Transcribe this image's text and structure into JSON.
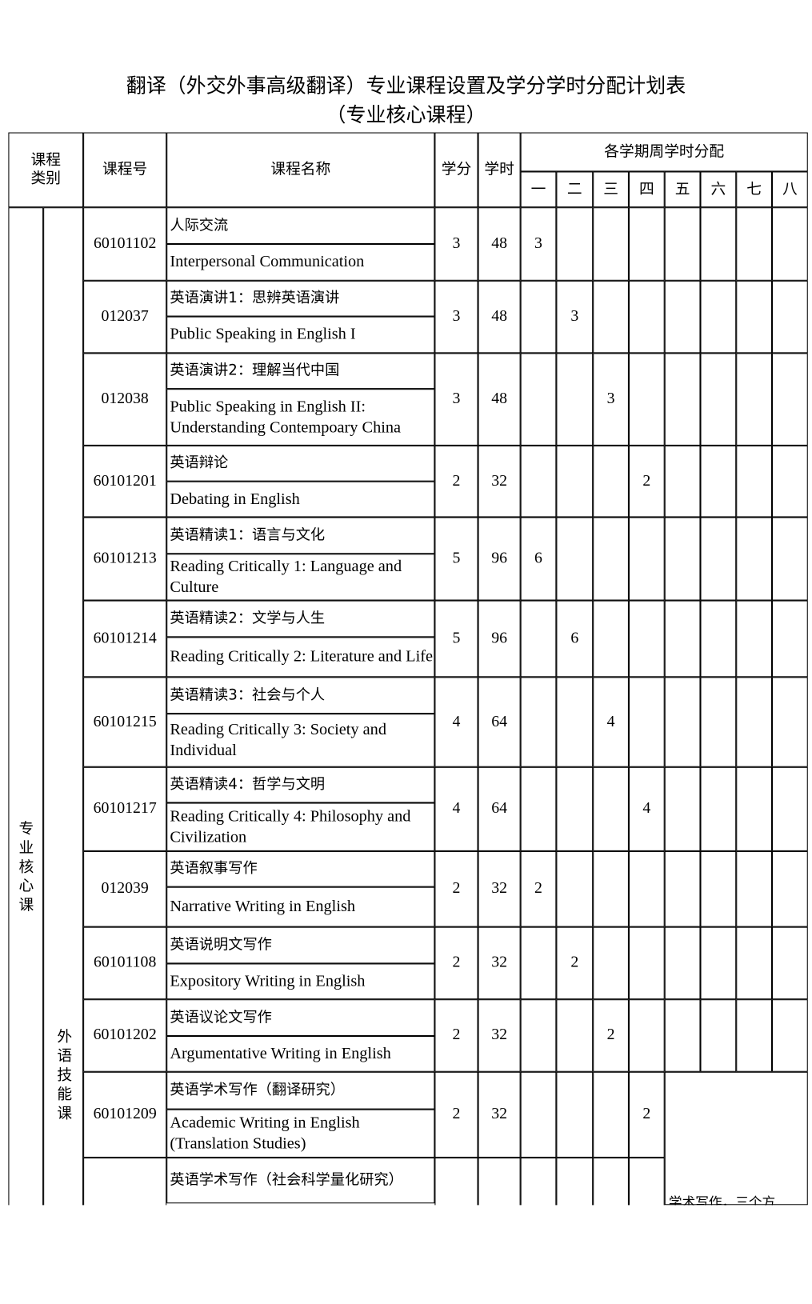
{
  "title": "翻译（外交外事高级翻译）专业课程设置及学分学时分配计划表",
  "subtitle": "（专业核心课程）",
  "header": {
    "category": "课程类别",
    "code": "课程号",
    "name": "课程名称",
    "credits": "学分",
    "hours": "学时",
    "semesters_title": "各学期周学时分配",
    "semesters": [
      "一",
      "二",
      "三",
      "四",
      "五",
      "六",
      "七",
      "八"
    ]
  },
  "categories": {
    "major": "专业核心课",
    "sub": "外语技能课"
  },
  "courses": [
    {
      "code": "60101102",
      "cn": "人际交流",
      "en": "Interpersonal Communication",
      "credits": "3",
      "hours": "48",
      "semester": 1,
      "weekly": "3"
    },
    {
      "code": "012037",
      "cn": "英语演讲1：思辨英语演讲",
      "en": "Public Speaking in English I",
      "credits": "3",
      "hours": "48",
      "semester": 2,
      "weekly": "3"
    },
    {
      "code": "012038",
      "cn": "英语演讲2：理解当代中国",
      "en": "Public Speaking in English II: Understanding Contempoary China",
      "credits": "3",
      "hours": "48",
      "semester": 3,
      "weekly": "3"
    },
    {
      "code": "60101201",
      "cn": "英语辩论",
      "en": "Debating in English",
      "credits": "2",
      "hours": "32",
      "semester": 4,
      "weekly": "2"
    },
    {
      "code": "60101213",
      "cn": "英语精读1：语言与文化",
      "en": "Reading Critically 1: Language and Culture",
      "credits": "5",
      "hours": "96",
      "semester": 1,
      "weekly": "6"
    },
    {
      "code": "60101214",
      "cn": "英语精读2：文学与人生",
      "en": "Reading Critically 2: Literature and Life",
      "credits": "5",
      "hours": "96",
      "semester": 2,
      "weekly": "6"
    },
    {
      "code": "60101215",
      "cn": "英语精读3：社会与个人",
      "en": "Reading Critically 3: Society and Individual",
      "credits": "4",
      "hours": "64",
      "semester": 3,
      "weekly": "4"
    },
    {
      "code": "60101217",
      "cn": "英语精读4：哲学与文明",
      "en": "Reading Critically 4: Philosophy and Civilization",
      "credits": "4",
      "hours": "64",
      "semester": 4,
      "weekly": "4"
    },
    {
      "code": "012039",
      "cn": "英语叙事写作",
      "en": "Narrative Writing in English",
      "credits": "2",
      "hours": "32",
      "semester": 1,
      "weekly": "2"
    },
    {
      "code": "60101108",
      "cn": "英语说明文写作",
      "en": "Expository Writing in English",
      "credits": "2",
      "hours": "32",
      "semester": 2,
      "weekly": "2"
    },
    {
      "code": "60101202",
      "cn": "英语议论文写作",
      "en": "Argumentative Writing in English",
      "credits": "2",
      "hours": "32",
      "semester": 3,
      "weekly": "2"
    },
    {
      "code": "60101209",
      "cn": "英语学术写作（翻译研究）",
      "en": "Academic Writing in English (Translation Studies)",
      "credits": "2",
      "hours": "32",
      "semester": 4,
      "weekly": "2"
    },
    {
      "code": "",
      "cn": "英语学术写作（社会科学量化研究）",
      "en": "",
      "credits": "",
      "hours": "",
      "semester": 0,
      "weekly": ""
    }
  ],
  "note": "学术写作，三个方"
}
